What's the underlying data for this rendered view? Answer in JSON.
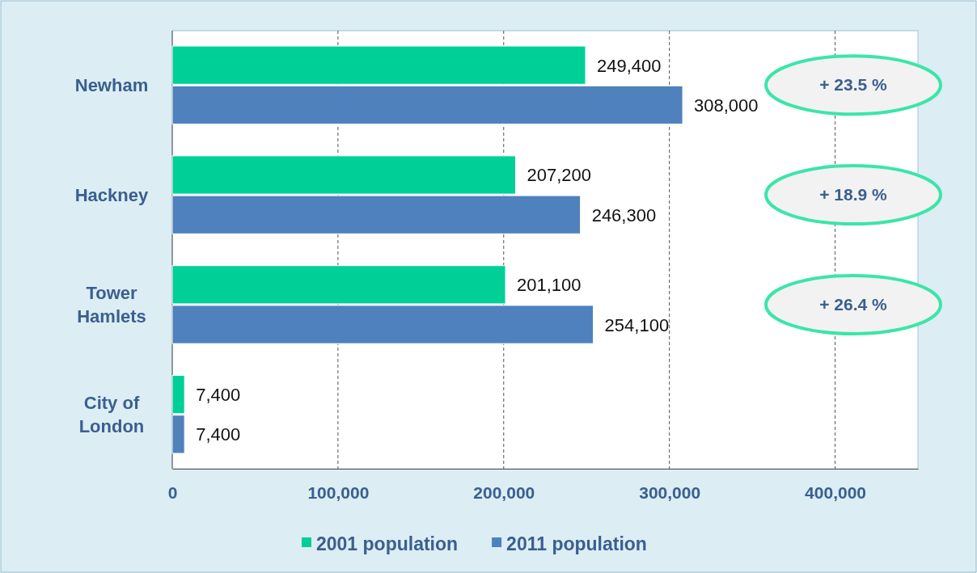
{
  "chart_data": {
    "type": "bar",
    "orientation": "horizontal",
    "categories": [
      "Newham",
      "Hackney",
      "Tower Hamlets",
      "City of London"
    ],
    "series": [
      {
        "name": "2001 population",
        "color": "#00cf98",
        "values": [
          249400,
          207200,
          201100,
          7400
        ],
        "value_labels": [
          "249,400",
          "207,200",
          "201,100",
          "7,400"
        ]
      },
      {
        "name": "2011 population",
        "color": "#4f81bd",
        "values": [
          308000,
          246300,
          254100,
          7400
        ],
        "value_labels": [
          "308,000",
          "246,300",
          "254,100",
          "7,400"
        ]
      }
    ],
    "xlim": [
      0,
      450000
    ],
    "xticks": [
      {
        "value": 0,
        "label": "0"
      },
      {
        "value": 100000,
        "label": "100,000"
      },
      {
        "value": 200000,
        "label": "200,000"
      },
      {
        "value": 300000,
        "label": "300,000"
      },
      {
        "value": 400000,
        "label": "400,000"
      }
    ],
    "grid": "x",
    "legend": "bottom",
    "annotations": [
      "+ 23.5 %",
      "+ 18.9 %",
      "+ 26.4 %"
    ]
  }
}
